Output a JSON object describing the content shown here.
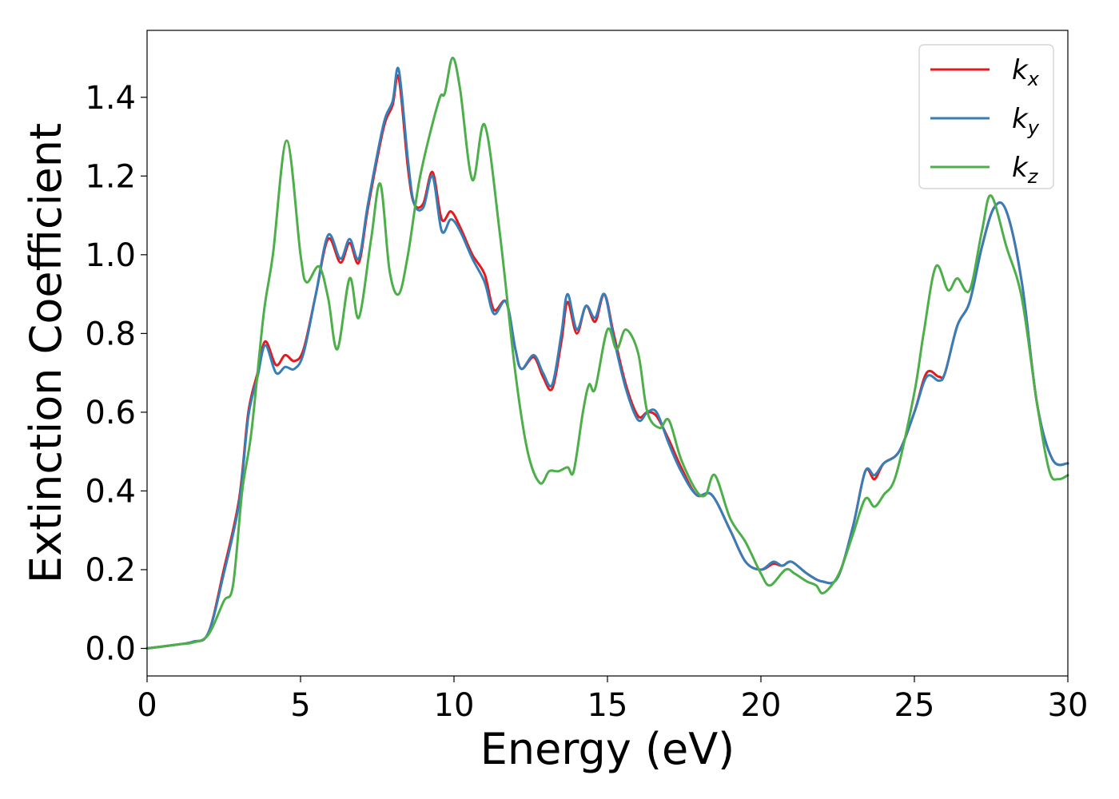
{
  "chart_data": {
    "type": "line",
    "title": "",
    "xlabel": "Energy (eV)",
    "ylabel": "Extinction Coefficient",
    "xlim": [
      0,
      30
    ],
    "ylim": [
      -0.07,
      1.57
    ],
    "xticks": [
      "0",
      "5",
      "10",
      "15",
      "20",
      "25",
      "30"
    ],
    "yticks": [
      "0.0",
      "0.2",
      "0.4",
      "0.6",
      "0.8",
      "1.0",
      "1.2",
      "1.4"
    ],
    "grid": false,
    "legend_position": "top-right",
    "series": [
      {
        "name": "k",
        "subscript": "x",
        "color": "#e41a1c",
        "points": [
          [
            0,
            0
          ],
          [
            1,
            0.01
          ],
          [
            1.5,
            0.017
          ],
          [
            2,
            0.04
          ],
          [
            2.5,
            0.2
          ],
          [
            3,
            0.38
          ],
          [
            3.3,
            0.6
          ],
          [
            3.6,
            0.7
          ],
          [
            3.85,
            0.78
          ],
          [
            4.2,
            0.72
          ],
          [
            4.5,
            0.745
          ],
          [
            4.8,
            0.73
          ],
          [
            5.1,
            0.76
          ],
          [
            5.5,
            0.9
          ],
          [
            5.9,
            1.04
          ],
          [
            6.3,
            0.98
          ],
          [
            6.6,
            1.03
          ],
          [
            6.9,
            0.98
          ],
          [
            7.2,
            1.12
          ],
          [
            7.7,
            1.32
          ],
          [
            8,
            1.38
          ],
          [
            8.2,
            1.45
          ],
          [
            8.5,
            1.22
          ],
          [
            8.7,
            1.13
          ],
          [
            9.0,
            1.13
          ],
          [
            9.3,
            1.21
          ],
          [
            9.6,
            1.09
          ],
          [
            9.9,
            1.11
          ],
          [
            10.2,
            1.07
          ],
          [
            10.6,
            1.0
          ],
          [
            11,
            0.95
          ],
          [
            11.3,
            0.86
          ],
          [
            11.7,
            0.88
          ],
          [
            12,
            0.76
          ],
          [
            12.2,
            0.71
          ],
          [
            12.6,
            0.74
          ],
          [
            12.9,
            0.69
          ],
          [
            13.2,
            0.66
          ],
          [
            13.5,
            0.78
          ],
          [
            13.7,
            0.88
          ],
          [
            14,
            0.8
          ],
          [
            14.3,
            0.87
          ],
          [
            14.6,
            0.83
          ],
          [
            14.9,
            0.9
          ],
          [
            15.2,
            0.8
          ],
          [
            15.6,
            0.67
          ],
          [
            16,
            0.59
          ],
          [
            16.3,
            0.6
          ],
          [
            16.6,
            0.59
          ],
          [
            17,
            0.53
          ],
          [
            17.4,
            0.46
          ],
          [
            17.9,
            0.39
          ],
          [
            18.4,
            0.39
          ],
          [
            19,
            0.3
          ],
          [
            19.5,
            0.22
          ],
          [
            20,
            0.2
          ],
          [
            20.4,
            0.215
          ],
          [
            20.7,
            0.21
          ],
          [
            21,
            0.22
          ],
          [
            21.5,
            0.19
          ],
          [
            22,
            0.17
          ],
          [
            22.5,
            0.18
          ],
          [
            23,
            0.31
          ],
          [
            23.4,
            0.45
          ],
          [
            23.7,
            0.43
          ],
          [
            24,
            0.47
          ],
          [
            24.5,
            0.5
          ],
          [
            25,
            0.6
          ],
          [
            25.4,
            0.7
          ],
          [
            25.8,
            0.69
          ],
          [
            26,
            0.7
          ],
          [
            26.4,
            0.82
          ],
          [
            26.8,
            0.88
          ],
          [
            27.2,
            1.02
          ],
          [
            27.6,
            1.12
          ],
          [
            28,
            1.11
          ],
          [
            28.5,
            0.93
          ],
          [
            29,
            0.62
          ],
          [
            29.5,
            0.48
          ],
          [
            30,
            0.47
          ]
        ]
      },
      {
        "name": "k",
        "subscript": "y",
        "color": "#377eb8",
        "points": [
          [
            0,
            0
          ],
          [
            1,
            0.01
          ],
          [
            1.5,
            0.017
          ],
          [
            2,
            0.04
          ],
          [
            2.5,
            0.19
          ],
          [
            3,
            0.37
          ],
          [
            3.3,
            0.59
          ],
          [
            3.6,
            0.69
          ],
          [
            3.85,
            0.77
          ],
          [
            4.2,
            0.7
          ],
          [
            4.5,
            0.715
          ],
          [
            4.8,
            0.71
          ],
          [
            5.1,
            0.75
          ],
          [
            5.5,
            0.9
          ],
          [
            5.9,
            1.05
          ],
          [
            6.3,
            0.99
          ],
          [
            6.6,
            1.04
          ],
          [
            6.9,
            0.99
          ],
          [
            7.2,
            1.13
          ],
          [
            7.7,
            1.33
          ],
          [
            8,
            1.39
          ],
          [
            8.2,
            1.47
          ],
          [
            8.5,
            1.24
          ],
          [
            8.7,
            1.13
          ],
          [
            9.0,
            1.12
          ],
          [
            9.3,
            1.2
          ],
          [
            9.6,
            1.06
          ],
          [
            9.9,
            1.09
          ],
          [
            10.2,
            1.06
          ],
          [
            10.6,
            0.99
          ],
          [
            11,
            0.93
          ],
          [
            11.3,
            0.85
          ],
          [
            11.7,
            0.88
          ],
          [
            12,
            0.76
          ],
          [
            12.2,
            0.71
          ],
          [
            12.6,
            0.745
          ],
          [
            12.9,
            0.7
          ],
          [
            13.2,
            0.67
          ],
          [
            13.5,
            0.8
          ],
          [
            13.7,
            0.9
          ],
          [
            14,
            0.81
          ],
          [
            14.3,
            0.87
          ],
          [
            14.6,
            0.84
          ],
          [
            14.9,
            0.9
          ],
          [
            15.2,
            0.79
          ],
          [
            15.6,
            0.66
          ],
          [
            16,
            0.58
          ],
          [
            16.3,
            0.6
          ],
          [
            16.6,
            0.6
          ],
          [
            17,
            0.52
          ],
          [
            17.4,
            0.45
          ],
          [
            17.9,
            0.39
          ],
          [
            18.4,
            0.39
          ],
          [
            19,
            0.3
          ],
          [
            19.5,
            0.22
          ],
          [
            20,
            0.2
          ],
          [
            20.4,
            0.22
          ],
          [
            20.7,
            0.21
          ],
          [
            21,
            0.22
          ],
          [
            21.5,
            0.19
          ],
          [
            22,
            0.17
          ],
          [
            22.5,
            0.18
          ],
          [
            23,
            0.31
          ],
          [
            23.4,
            0.45
          ],
          [
            23.7,
            0.44
          ],
          [
            24,
            0.47
          ],
          [
            24.5,
            0.5
          ],
          [
            25,
            0.6
          ],
          [
            25.4,
            0.69
          ],
          [
            25.8,
            0.68
          ],
          [
            26,
            0.7
          ],
          [
            26.4,
            0.82
          ],
          [
            26.8,
            0.88
          ],
          [
            27.2,
            1.02
          ],
          [
            27.6,
            1.12
          ],
          [
            28,
            1.11
          ],
          [
            28.5,
            0.93
          ],
          [
            29,
            0.62
          ],
          [
            29.5,
            0.48
          ],
          [
            30,
            0.47
          ]
        ]
      },
      {
        "name": "k",
        "subscript": "z",
        "color": "#4daf4a",
        "points": [
          [
            0,
            0
          ],
          [
            1,
            0.01
          ],
          [
            1.5,
            0.015
          ],
          [
            2,
            0.035
          ],
          [
            2.5,
            0.12
          ],
          [
            2.8,
            0.16
          ],
          [
            3.1,
            0.4
          ],
          [
            3.4,
            0.55
          ],
          [
            3.8,
            0.85
          ],
          [
            4.1,
            1.0
          ],
          [
            4.55,
            1.29
          ],
          [
            5.0,
            1.0
          ],
          [
            5.2,
            0.93
          ],
          [
            5.6,
            0.97
          ],
          [
            5.9,
            0.89
          ],
          [
            6.2,
            0.76
          ],
          [
            6.6,
            0.94
          ],
          [
            6.9,
            0.84
          ],
          [
            7.3,
            1.04
          ],
          [
            7.6,
            1.18
          ],
          [
            7.9,
            0.96
          ],
          [
            8.2,
            0.9
          ],
          [
            8.5,
            1.0
          ],
          [
            8.9,
            1.2
          ],
          [
            9.5,
            1.39
          ],
          [
            9.7,
            1.41
          ],
          [
            9.95,
            1.5
          ],
          [
            10.2,
            1.42
          ],
          [
            10.6,
            1.19
          ],
          [
            11,
            1.33
          ],
          [
            11.5,
            1.05
          ],
          [
            12,
            0.7
          ],
          [
            12.4,
            0.5
          ],
          [
            12.8,
            0.42
          ],
          [
            13.1,
            0.45
          ],
          [
            13.4,
            0.45
          ],
          [
            13.7,
            0.46
          ],
          [
            13.9,
            0.45
          ],
          [
            14.2,
            0.6
          ],
          [
            14.4,
            0.67
          ],
          [
            14.6,
            0.66
          ],
          [
            15,
            0.81
          ],
          [
            15.3,
            0.76
          ],
          [
            15.6,
            0.81
          ],
          [
            16,
            0.75
          ],
          [
            16.3,
            0.6
          ],
          [
            16.7,
            0.56
          ],
          [
            17.0,
            0.58
          ],
          [
            17.4,
            0.48
          ],
          [
            17.9,
            0.4
          ],
          [
            18.2,
            0.39
          ],
          [
            18.5,
            0.44
          ],
          [
            19,
            0.33
          ],
          [
            19.5,
            0.27
          ],
          [
            20,
            0.19
          ],
          [
            20.3,
            0.16
          ],
          [
            20.8,
            0.2
          ],
          [
            21.1,
            0.19
          ],
          [
            21.5,
            0.17
          ],
          [
            21.8,
            0.16
          ],
          [
            22,
            0.14
          ],
          [
            22.3,
            0.16
          ],
          [
            22.6,
            0.2
          ],
          [
            23,
            0.29
          ],
          [
            23.4,
            0.38
          ],
          [
            23.7,
            0.36
          ],
          [
            24,
            0.39
          ],
          [
            24.4,
            0.44
          ],
          [
            25,
            0.65
          ],
          [
            25.3,
            0.8
          ],
          [
            25.7,
            0.97
          ],
          [
            26.1,
            0.91
          ],
          [
            26.4,
            0.94
          ],
          [
            26.8,
            0.91
          ],
          [
            27.2,
            1.06
          ],
          [
            27.5,
            1.15
          ],
          [
            28,
            1.02
          ],
          [
            28.5,
            0.89
          ],
          [
            29,
            0.62
          ],
          [
            29.4,
            0.45
          ],
          [
            29.7,
            0.43
          ],
          [
            30,
            0.44
          ]
        ]
      }
    ]
  }
}
